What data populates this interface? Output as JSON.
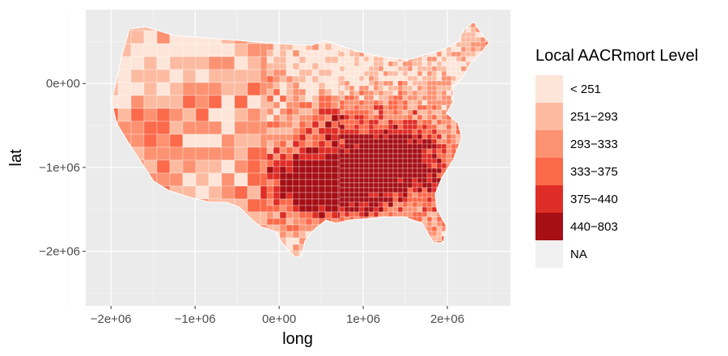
{
  "chart_data": {
    "type": "choropleth",
    "xlabel": "long",
    "ylabel": "lat",
    "x_ticks": [
      "−2e+06",
      "−1e+06",
      "0e+00",
      "1e+06",
      "2e+06"
    ],
    "y_ticks": [
      "0e+00",
      "−1e+06",
      "−2e+06"
    ],
    "x_tick_values": [
      -2000000,
      -1000000,
      0,
      1000000,
      2000000
    ],
    "y_tick_values": [
      0,
      -1000000,
      -2000000
    ],
    "xlim": [
      -2300000,
      2750000
    ],
    "ylim": [
      -2650000,
      880000
    ],
    "grid": true,
    "legend_position": "right",
    "legend": {
      "title": "Local AACRmort Level",
      "categories": [
        {
          "label": "< 251",
          "color": "#fee5d9"
        },
        {
          "label": "251−293",
          "color": "#fcbba1"
        },
        {
          "label": "293−333",
          "color": "#fc9272"
        },
        {
          "label": "333−375",
          "color": "#fb6a4a"
        },
        {
          "label": "375−440",
          "color": "#de2d26"
        },
        {
          "label": "440−803",
          "color": "#a50f15"
        },
        {
          "label": "NA",
          "color": "#f0f0f0"
        }
      ]
    }
  },
  "colors": {
    "panel_background": "#ebebeb",
    "grid_major": "#ffffff",
    "axis_text": "#4d4d4d",
    "county_border": "#ffffff"
  }
}
